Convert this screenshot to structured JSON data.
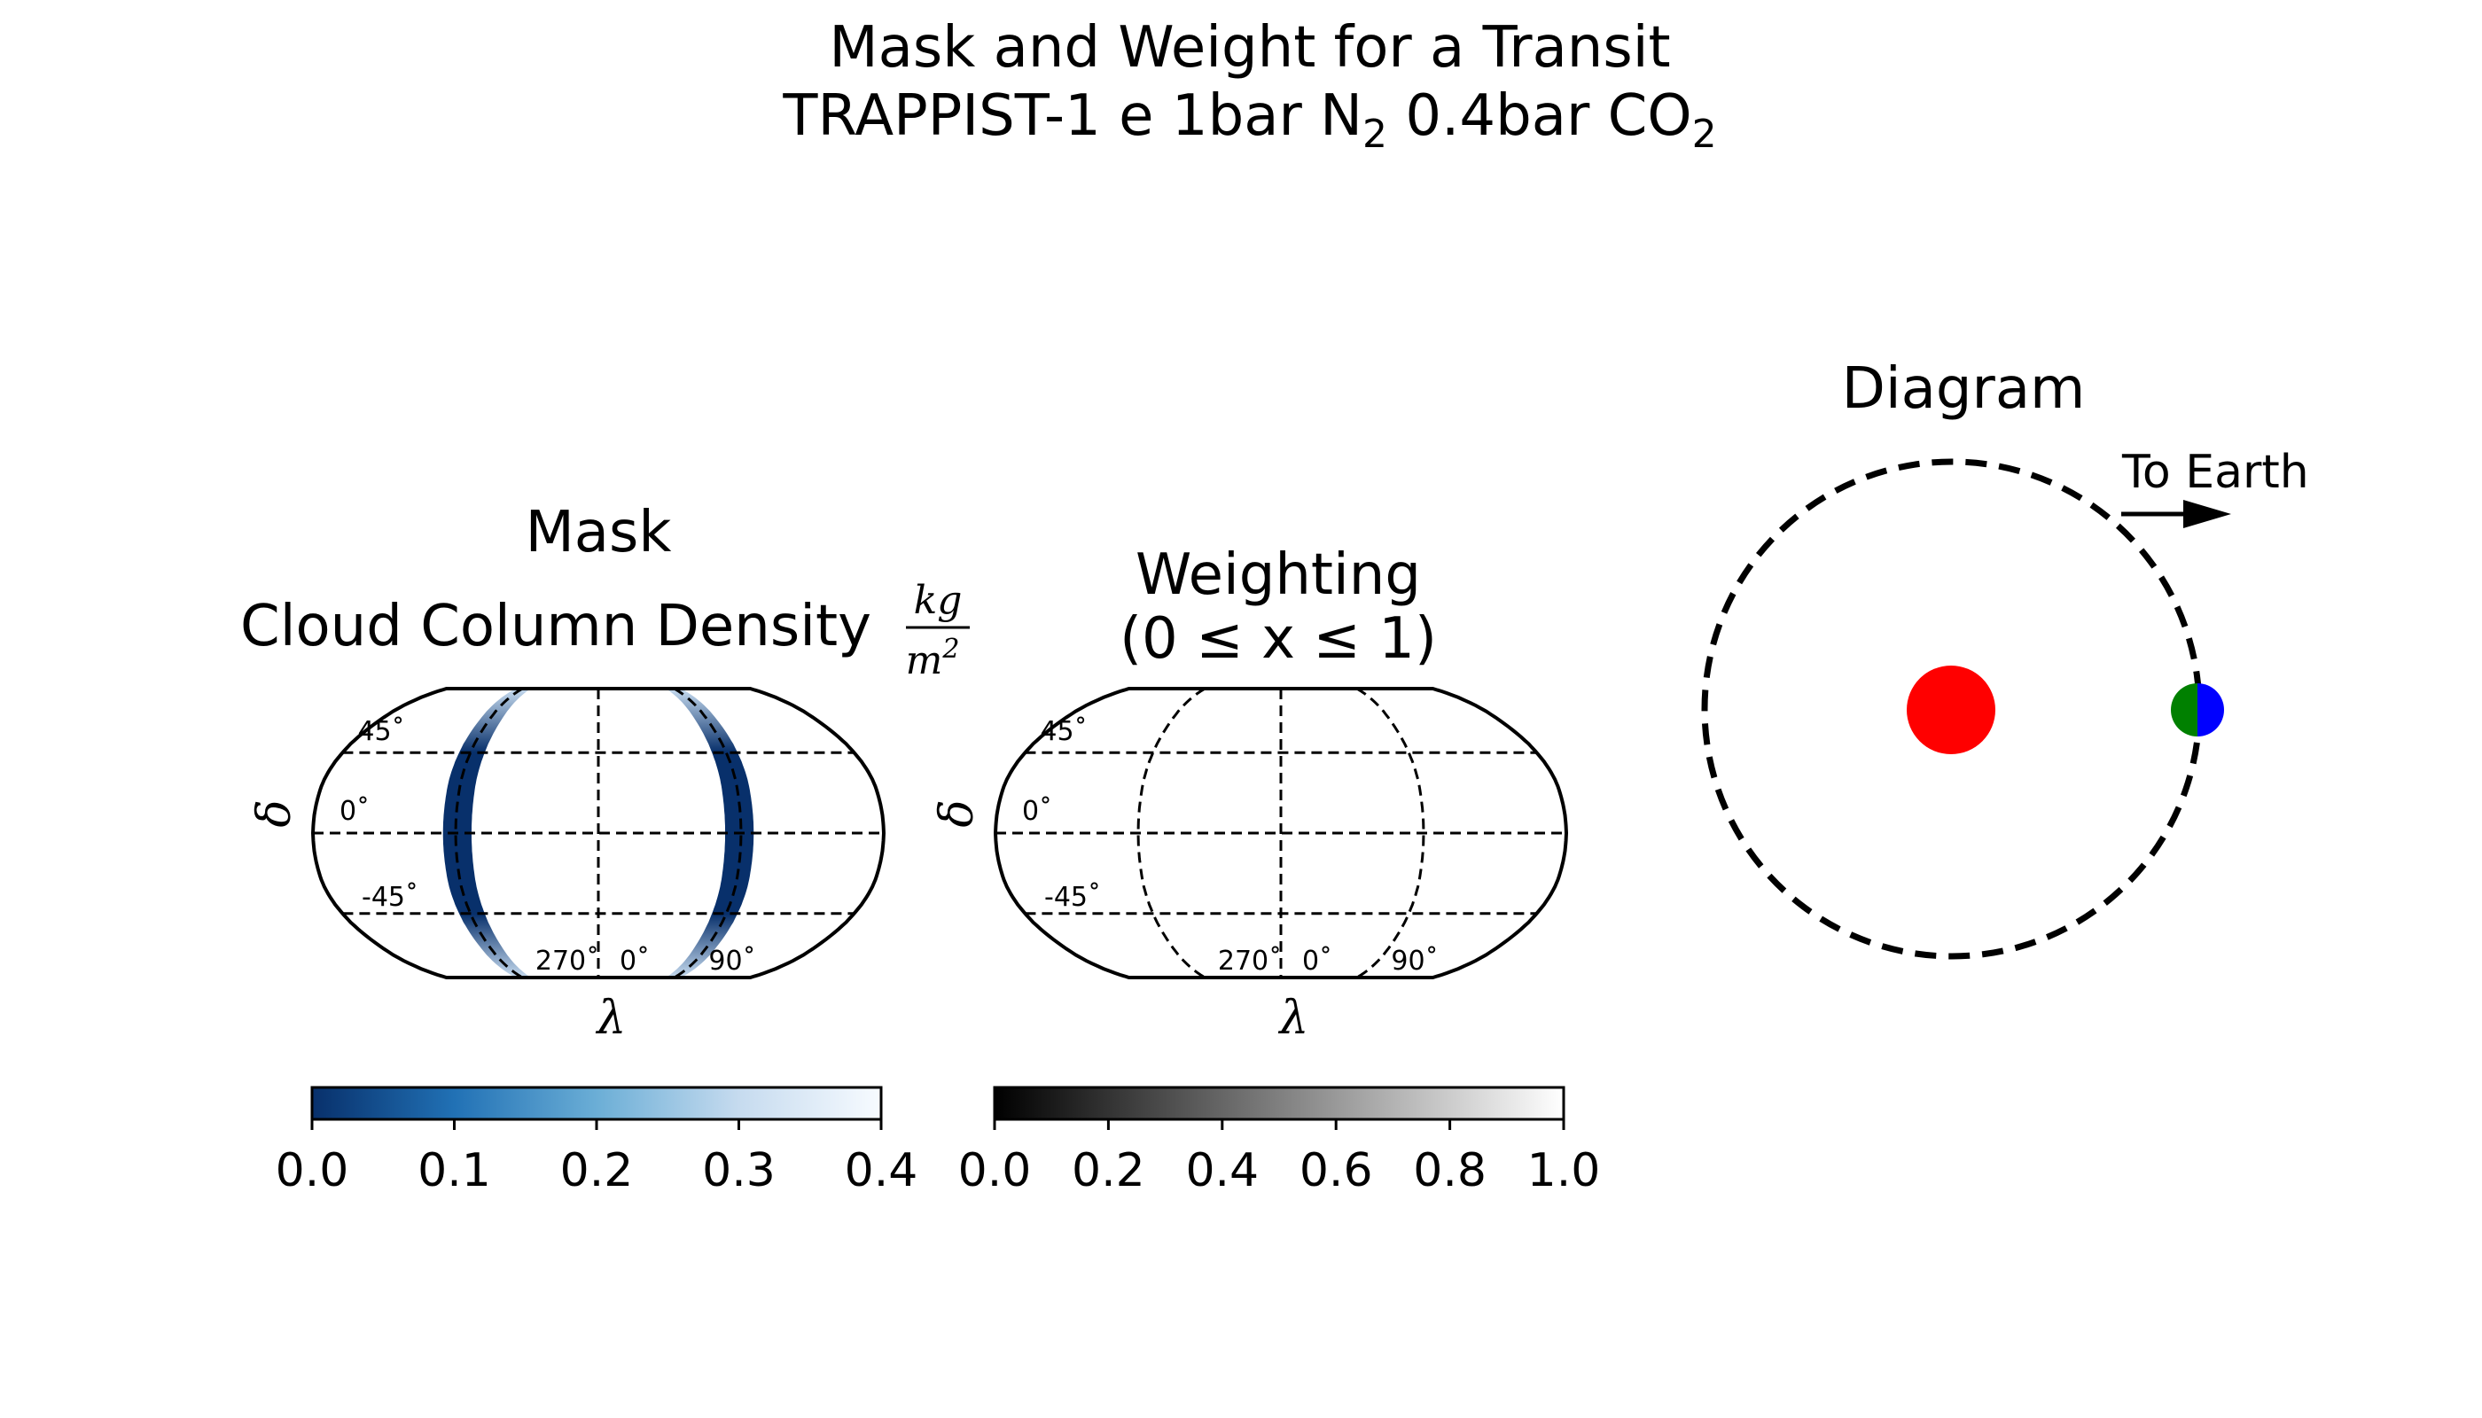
{
  "figure": {
    "title_line1": "Mask and Weight for a Transit",
    "title_line2_prefix": "TRAPPIST-1 e 1bar N",
    "title_line2_sub1": "2",
    "title_line2_mid": " 0.4bar CO",
    "title_line2_sub2": "2"
  },
  "chart_data": [
    {
      "type": "heatmap",
      "panel": "mask",
      "title": "Mask",
      "subtitle": "Cloud Column Density",
      "unit_numerator": "kg",
      "unit_denominator": "m",
      "unit_power": "2",
      "xlabel": "λ",
      "ylabel": "δ",
      "lat_tick_labels": [
        "45˚",
        "0˚",
        "-45˚"
      ],
      "lon_tick_labels": [
        "270˚",
        "0˚",
        "90˚"
      ],
      "colormap": "Blues_r",
      "colorbar_range": [
        0.0,
        0.4
      ],
      "colorbar_ticks": [
        "0.0",
        "0.1",
        "0.2",
        "0.3",
        "0.4"
      ],
      "mask_bands_lon_deg": [
        [
          -98,
          -80
        ],
        [
          80,
          98
        ]
      ],
      "band_dark_color": "#08306b",
      "band_light_color": "#c6dbef"
    },
    {
      "type": "heatmap",
      "panel": "weighting",
      "title": "Weighting",
      "subtitle": "(0 ≤ x ≤ 1)",
      "xlabel": "λ",
      "ylabel": "δ",
      "lat_tick_labels": [
        "45˚",
        "0˚",
        "-45˚"
      ],
      "lon_tick_labels": [
        "270˚",
        "0˚",
        "90˚"
      ],
      "colormap": "gray",
      "colorbar_range": [
        0.0,
        1.0
      ],
      "colorbar_ticks": [
        "0.0",
        "0.2",
        "0.4",
        "0.6",
        "0.8",
        "1.0"
      ]
    }
  ],
  "diagram": {
    "title": "Diagram",
    "arrow_label": "To Earth",
    "star_color": "#ff0000",
    "planet_day_color": "#0000ff",
    "planet_night_color": "#008000"
  }
}
